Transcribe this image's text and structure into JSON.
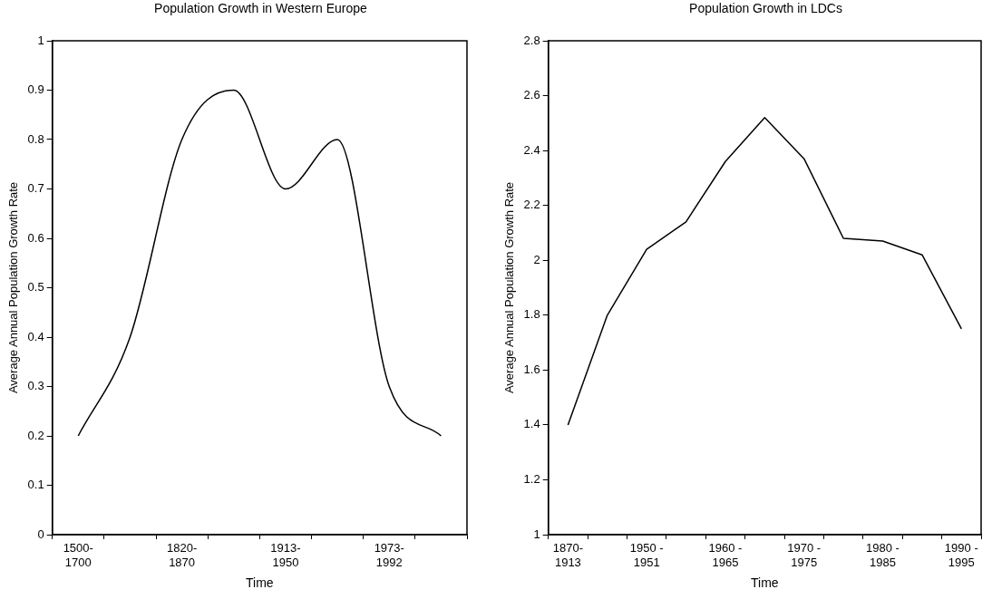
{
  "chart_data": [
    {
      "type": "line",
      "title": "Population Growth in Western Europe",
      "xlabel": "Time",
      "ylabel": "Average Annual Population Growth Rate",
      "categories": [
        "1500-1700",
        null,
        "1820-1870",
        null,
        "1913-1950",
        null,
        "1973-1992",
        null
      ],
      "values": [
        0.2,
        0.4,
        0.8,
        0.9,
        0.7,
        0.8,
        0.3,
        0.2
      ],
      "color": "#000000",
      "ylim": [
        0,
        1
      ],
      "yticks": [
        0,
        0.1,
        0.2,
        0.3,
        0.4,
        0.5,
        0.6,
        0.7,
        0.8,
        0.9,
        1
      ],
      "grid": false,
      "marker": "none",
      "line_style": "solid"
    },
    {
      "type": "line",
      "title": "Population Growth in LDCs",
      "xlabel": "Time",
      "ylabel": "Average Annual Population Growth Rate",
      "categories": [
        "1870-1913",
        null,
        "1950 - 1951",
        null,
        "1960 - 1965",
        null,
        "1970 - 1975",
        null,
        "1980 - 1985",
        null,
        "1990 - 1995"
      ],
      "values": [
        1.4,
        1.8,
        2.04,
        2.14,
        2.36,
        2.52,
        2.37,
        2.08,
        2.07,
        2.02,
        1.75
      ],
      "color": "#000000",
      "ylim": [
        1,
        2.8
      ],
      "yticks": [
        1,
        1.2,
        1.4,
        1.6,
        1.8,
        2,
        2.2,
        2.4,
        2.6,
        2.8
      ],
      "grid": false,
      "marker": "none",
      "line_style": "solid"
    }
  ]
}
